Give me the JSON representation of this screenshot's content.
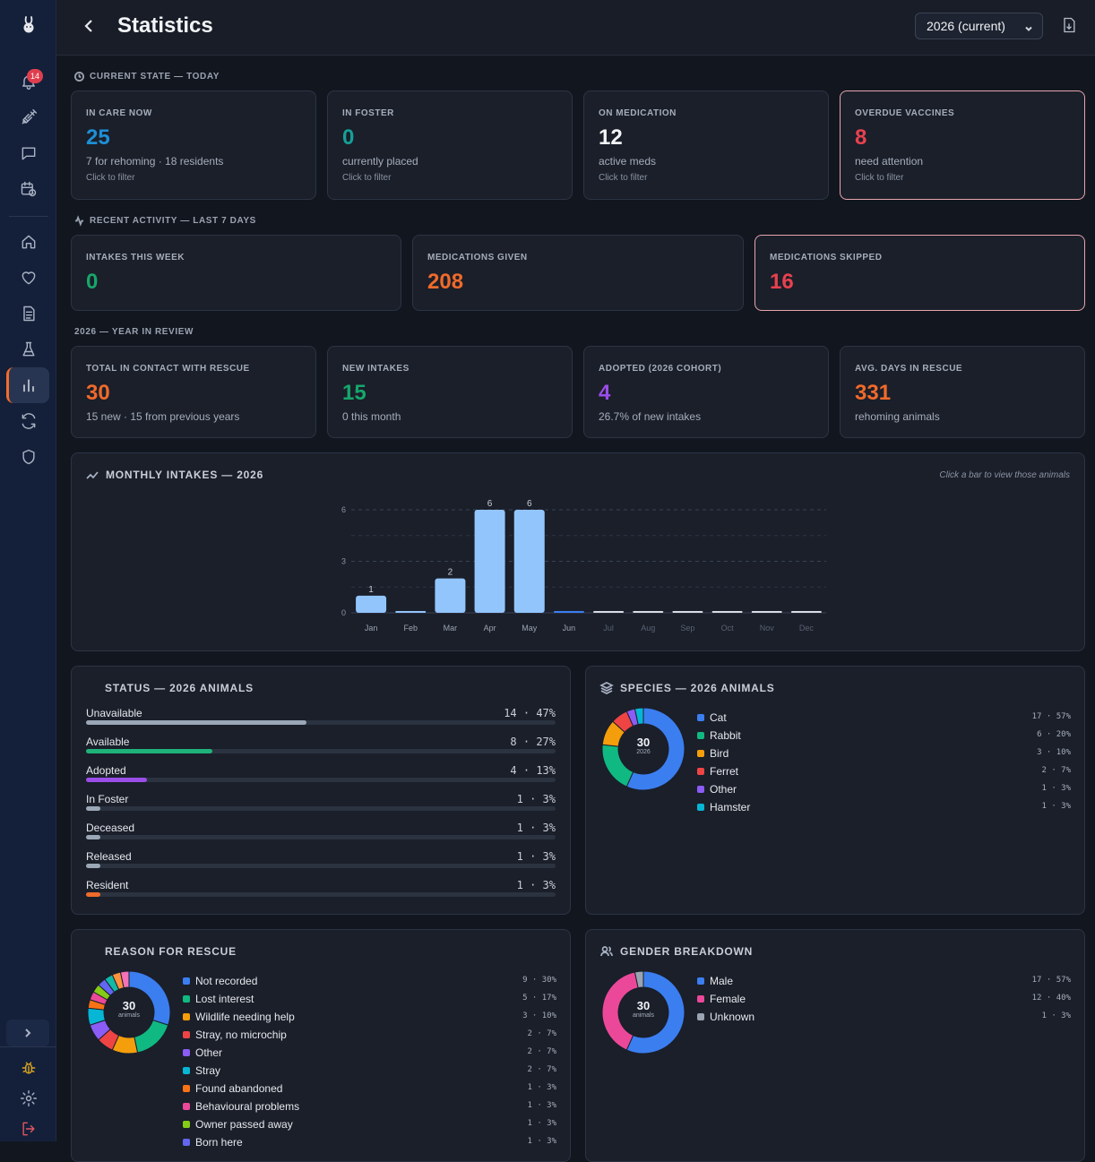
{
  "header": {
    "title": "Statistics",
    "year_select": "2026 (current)"
  },
  "sidebar": {
    "notification_count": "14",
    "items": [
      {
        "icon": "bell-icon"
      },
      {
        "icon": "syringe-icon"
      },
      {
        "icon": "chat-icon"
      },
      {
        "icon": "calendar-clock-icon"
      },
      {
        "icon": "home-icon"
      },
      {
        "icon": "heart-icon"
      },
      {
        "icon": "document-icon"
      },
      {
        "icon": "flask-icon"
      },
      {
        "icon": "bar-chart-icon"
      },
      {
        "icon": "refresh-icon"
      },
      {
        "icon": "shield-icon"
      }
    ]
  },
  "current_state": {
    "label": "CURRENT STATE — TODAY",
    "cards": [
      {
        "label": "IN CARE NOW",
        "value": "25",
        "sub": "7 for rehoming · 18 residents",
        "hint": "Click to filter",
        "color": "#1e8fd6"
      },
      {
        "label": "IN FOSTER",
        "value": "0",
        "sub": "currently placed",
        "hint": "Click to filter",
        "color": "#16a097"
      },
      {
        "label": "ON MEDICATION",
        "value": "12",
        "sub": "active meds",
        "hint": "Click to filter",
        "color": "#f2f4f7"
      },
      {
        "label": "OVERDUE VACCINES",
        "value": "8",
        "sub": "need attention",
        "hint": "Click to filter",
        "color": "#e8414e"
      }
    ]
  },
  "recent_activity": {
    "label": "RECENT ACTIVITY — LAST 7 DAYS",
    "cards": [
      {
        "label": "INTAKES THIS WEEK",
        "value": "0",
        "color": "#17a66a"
      },
      {
        "label": "MEDICATIONS GIVEN",
        "value": "208",
        "color": "#f06a2a"
      },
      {
        "label": "MEDICATIONS SKIPPED",
        "value": "16",
        "color": "#e8414e"
      }
    ]
  },
  "year_review": {
    "label": "2026 — YEAR IN REVIEW",
    "cards": [
      {
        "label": "TOTAL IN CONTACT WITH RESCUE",
        "value": "30",
        "sub": "15 new · 15 from previous years",
        "color": "#f06a2a"
      },
      {
        "label": "NEW INTAKES",
        "value": "15",
        "sub": "0 this month",
        "color": "#17a66a"
      },
      {
        "label": "ADOPTED (2026 COHORT)",
        "value": "4",
        "sub": "26.7% of new intakes",
        "color": "#9b4de8"
      },
      {
        "label": "AVG. DAYS IN RESCUE",
        "value": "331",
        "sub": "rehoming animals",
        "color": "#f06a2a"
      }
    ]
  },
  "monthly": {
    "title": "MONTHLY INTAKES — 2026",
    "note": "Click a bar to view those animals"
  },
  "chart_data": {
    "type": "bar",
    "title": "MONTHLY INTAKES — 2026",
    "categories": [
      "Jan",
      "Feb",
      "Mar",
      "Apr",
      "May",
      "Jun",
      "Jul",
      "Aug",
      "Sep",
      "Oct",
      "Nov",
      "Dec"
    ],
    "values": [
      1,
      0,
      2,
      6,
      6,
      0,
      0,
      0,
      0,
      0,
      0,
      0
    ],
    "value_labels": [
      "1",
      "",
      "2",
      "6",
      "6",
      "",
      "",
      "",
      "",
      "",
      "",
      ""
    ],
    "yticks": [
      "0",
      "3",
      "6"
    ],
    "ylim": [
      0,
      6
    ],
    "grid": true,
    "bar_color": "#93c5fd",
    "future_months_from_index": 6
  },
  "status": {
    "title": "STATUS — 2026 ANIMALS",
    "rows": [
      {
        "name": "Unavailable",
        "value": "14 · 47%",
        "pct": 47,
        "color": "#9aa7b6"
      },
      {
        "name": "Available",
        "value": "8 · 27%",
        "pct": 27,
        "color": "#1fb37a"
      },
      {
        "name": "Adopted",
        "value": "4 · 13%",
        "pct": 13,
        "color": "#9b4de8"
      },
      {
        "name": "In Foster",
        "value": "1 · 3%",
        "pct": 3,
        "color": "#9aa7b6"
      },
      {
        "name": "Deceased",
        "value": "1 · 3%",
        "pct": 3,
        "color": "#9aa7b6"
      },
      {
        "name": "Released",
        "value": "1 · 3%",
        "pct": 3,
        "color": "#9aa7b6"
      },
      {
        "name": "Resident",
        "value": "1 · 3%",
        "pct": 3,
        "color": "#f06a2a"
      }
    ]
  },
  "species": {
    "title": "SPECIES — 2026 ANIMALS",
    "center_value": "30",
    "center_label": "2026",
    "items": [
      {
        "name": "Cat",
        "value": "17 · 57%",
        "count": 17,
        "color": "#3b7ef0"
      },
      {
        "name": "Rabbit",
        "value": "6 · 20%",
        "count": 6,
        "color": "#10b981"
      },
      {
        "name": "Bird",
        "value": "3 · 10%",
        "count": 3,
        "color": "#f59e0b"
      },
      {
        "name": "Ferret",
        "value": "2 · 7%",
        "count": 2,
        "color": "#ef4444"
      },
      {
        "name": "Other",
        "value": "1 · 3%",
        "count": 1,
        "color": "#8b5cf6"
      },
      {
        "name": "Hamster",
        "value": "1 · 3%",
        "count": 1,
        "color": "#06b6d4"
      }
    ]
  },
  "reason": {
    "title": "REASON FOR RESCUE",
    "center_value": "30",
    "center_label": "animals",
    "items": [
      {
        "name": "Not recorded",
        "value": "9 · 30%",
        "count": 9,
        "color": "#3b7ef0"
      },
      {
        "name": "Lost interest",
        "value": "5 · 17%",
        "count": 5,
        "color": "#10b981"
      },
      {
        "name": "Wildlife needing help",
        "value": "3 · 10%",
        "count": 3,
        "color": "#f59e0b"
      },
      {
        "name": "Stray, no microchip",
        "value": "2 · 7%",
        "count": 2,
        "color": "#ef4444"
      },
      {
        "name": "Other",
        "value": "2 · 7%",
        "count": 2,
        "color": "#8b5cf6"
      },
      {
        "name": "Stray",
        "value": "2 · 7%",
        "count": 2,
        "color": "#06b6d4"
      },
      {
        "name": "Found abandoned",
        "value": "1 · 3%",
        "count": 1,
        "color": "#f97316"
      },
      {
        "name": "Behavioural problems",
        "value": "1 · 3%",
        "count": 1,
        "color": "#ec4899"
      },
      {
        "name": "Owner passed away",
        "value": "1 · 3%",
        "count": 1,
        "color": "#84cc16"
      },
      {
        "name": "Born here",
        "value": "1 · 3%",
        "count": 1,
        "color": "#6366f1"
      },
      {
        "name": "",
        "value": "",
        "count": 1,
        "color": "#14b8a6"
      },
      {
        "name": "",
        "value": "",
        "count": 1,
        "color": "#fb923c"
      },
      {
        "name": "",
        "value": "",
        "count": 1,
        "color": "#f472b6"
      }
    ]
  },
  "gender": {
    "title": "GENDER BREAKDOWN",
    "center_value": "30",
    "center_label": "animals",
    "items": [
      {
        "name": "Male",
        "value": "17 · 57%",
        "count": 17,
        "color": "#3b7ef0"
      },
      {
        "name": "Female",
        "value": "12 · 40%",
        "count": 12,
        "color": "#ec4899"
      },
      {
        "name": "Unknown",
        "value": "1 · 3%",
        "count": 1,
        "color": "#9aa3b2"
      }
    ]
  }
}
